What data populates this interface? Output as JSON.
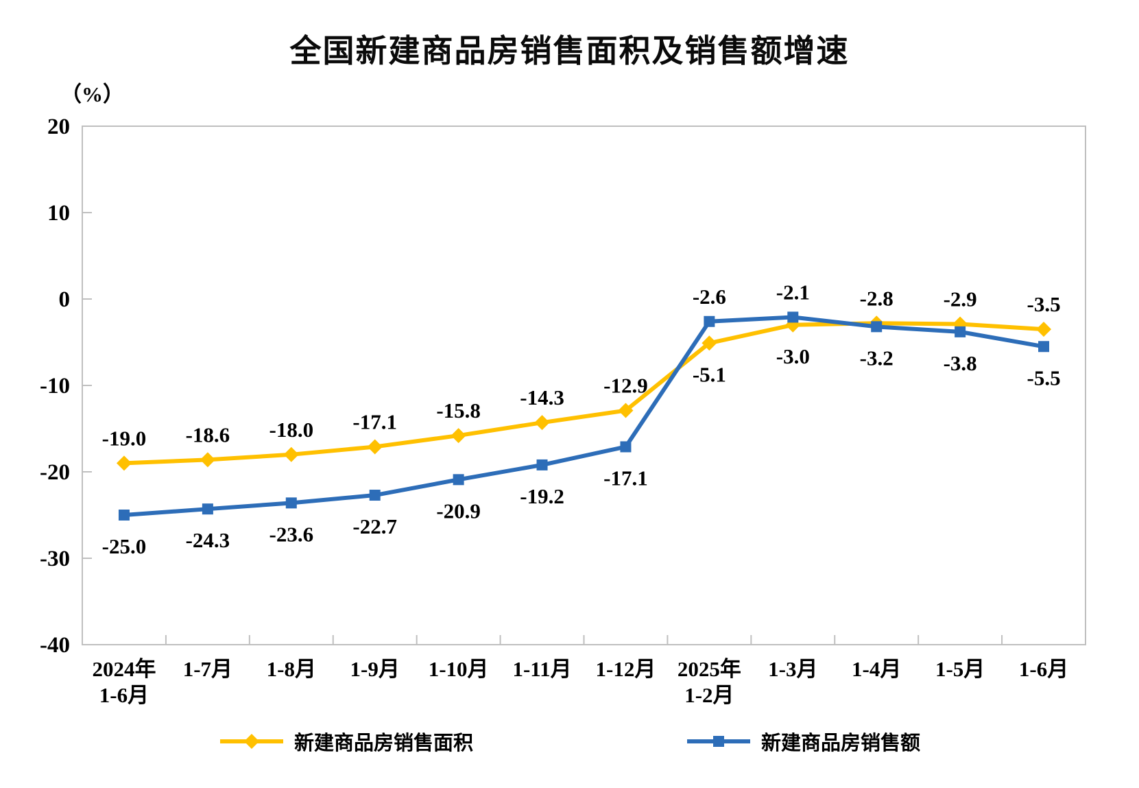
{
  "chart_data": {
    "type": "line",
    "title": "全国新建商品房销售面积及销售额增速",
    "unit_label": "（%）",
    "ylim": [
      -40,
      20
    ],
    "yticks": [
      20,
      10,
      0,
      -10,
      -20,
      -30,
      -40
    ],
    "grid": false,
    "legend_position": "bottom",
    "categories": [
      [
        "2024年",
        "1-6月"
      ],
      [
        "1-7月"
      ],
      [
        "1-8月"
      ],
      [
        "1-9月"
      ],
      [
        "1-10月"
      ],
      [
        "1-11月"
      ],
      [
        "1-12月"
      ],
      [
        "2025年",
        "1-2月"
      ],
      [
        "1-3月"
      ],
      [
        "1-4月"
      ],
      [
        "1-5月"
      ],
      [
        "1-6月"
      ]
    ],
    "series": [
      {
        "key": "sales-area",
        "name": "新建商品房销售面积",
        "color": "#FFC000",
        "marker": "diamond",
        "values": [
          -19.0,
          -18.6,
          -18.0,
          -17.1,
          -15.8,
          -14.3,
          -12.9,
          -5.1,
          -3.0,
          -2.8,
          -2.9,
          -3.5
        ],
        "label_side": [
          "above",
          "above",
          "above",
          "above",
          "above",
          "above",
          "above",
          "below",
          "below",
          "above",
          "above",
          "above"
        ]
      },
      {
        "key": "sales-amount",
        "name": "新建商品房销售额",
        "color": "#2D6DB8",
        "marker": "square",
        "values": [
          -25.0,
          -24.3,
          -23.6,
          -22.7,
          -20.9,
          -19.2,
          -17.1,
          -2.6,
          -2.1,
          -3.2,
          -3.8,
          -5.5
        ],
        "label_side": [
          "below",
          "below",
          "below",
          "below",
          "below",
          "below",
          "below",
          "above",
          "above",
          "below",
          "below",
          "below"
        ]
      }
    ],
    "axis_color": "#BFBFBF",
    "text_color": "#000000"
  }
}
